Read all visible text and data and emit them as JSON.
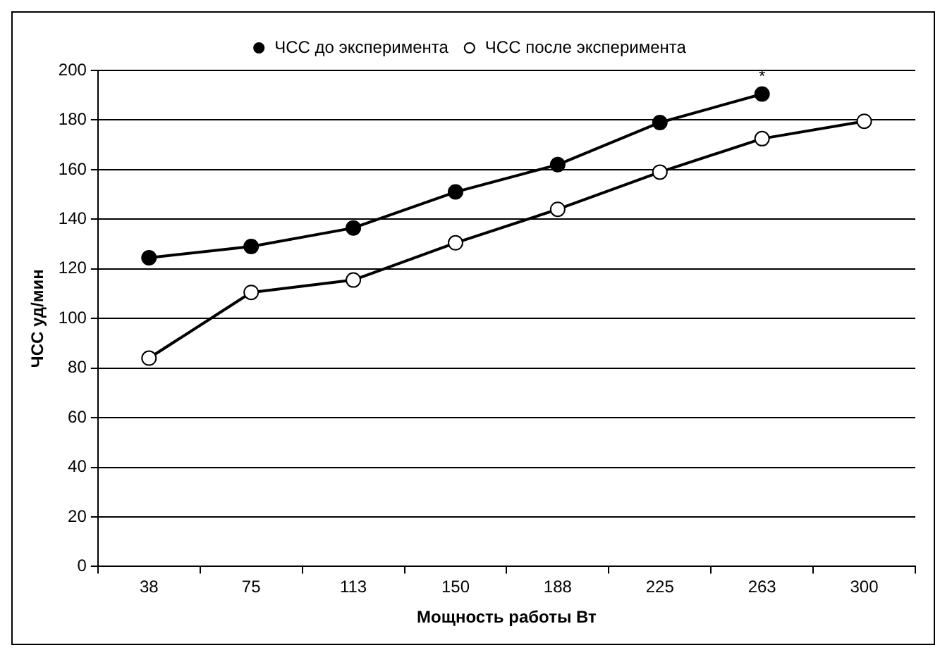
{
  "chart_data": {
    "type": "line",
    "xlabel": "Мощность работы Вт",
    "ylabel": "ЧСС уд/мин",
    "categories": [
      "38",
      "75",
      "113",
      "150",
      "188",
      "225",
      "263",
      "300"
    ],
    "series": [
      {
        "name": "ЧСС до эксперимента",
        "color": "#000000",
        "values": [
          124.5,
          129,
          136.5,
          151,
          162,
          179,
          190.5,
          null
        ]
      },
      {
        "name": "ЧСС после эксперимента",
        "color": "#ffffff",
        "values": [
          84,
          110.5,
          115.5,
          130.5,
          144,
          159,
          172.5,
          179.5
        ]
      }
    ],
    "ylim": [
      0,
      200
    ],
    "yticks": [
      0,
      20,
      40,
      60,
      80,
      100,
      120,
      140,
      160,
      180,
      200
    ],
    "grid": "y",
    "legend": "top",
    "marker": "circle",
    "line_style": "solid",
    "annotations": [
      {
        "text": "*",
        "x": "263",
        "y": 190.5
      }
    ]
  }
}
